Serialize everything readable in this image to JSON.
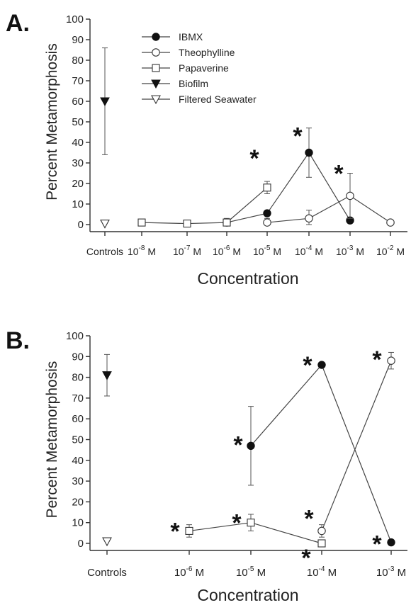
{
  "chart_data": [
    {
      "panel": "A.",
      "type": "line",
      "ylabel": "Percent Metamorphosis",
      "xlabel": "Concentration",
      "ylim": [
        0,
        100
      ],
      "yticks": [
        "0",
        "10",
        "20",
        "30",
        "40",
        "50",
        "60",
        "70",
        "80",
        "90",
        "100"
      ],
      "categories": [
        "Controls",
        "10-8 M",
        "10-7 M",
        "10-6 M",
        "10-5 M",
        "10-4 M",
        "10-3 M",
        "10-2 M"
      ],
      "category_labels": [
        {
          "base": "Controls",
          "exp": ""
        },
        {
          "base": "10",
          "exp": "-8",
          "unit": " M"
        },
        {
          "base": "10",
          "exp": "-7",
          "unit": " M"
        },
        {
          "base": "10",
          "exp": "-6",
          "unit": " M"
        },
        {
          "base": "10",
          "exp": "-5",
          "unit": " M"
        },
        {
          "base": "10",
          "exp": "-4",
          "unit": " M"
        },
        {
          "base": "10",
          "exp": "-3",
          "unit": " M"
        },
        {
          "base": "10",
          "exp": "-2",
          "unit": " M"
        }
      ],
      "legend": [
        "IBMX",
        "Theophylline",
        "Papaverine",
        "Biofilm",
        "Filtered Seawater"
      ],
      "series": [
        {
          "name": "IBMX",
          "marker": "filled-circle",
          "points": [
            {
              "x": "10-6 M",
              "y": 1,
              "err": 2
            },
            {
              "x": "10-5 M",
              "y": 5.5,
              "err": 0
            },
            {
              "x": "10-4 M",
              "y": 35,
              "err": 12,
              "sig": true
            },
            {
              "x": "10-3 M",
              "y": 2,
              "err": 0
            }
          ]
        },
        {
          "name": "Theophylline",
          "marker": "open-circle",
          "points": [
            {
              "x": "10-5 M",
              "y": 1,
              "err": 2
            },
            {
              "x": "10-4 M",
              "y": 3,
              "err": 4
            },
            {
              "x": "10-3 M",
              "y": 14,
              "err": 11,
              "sig": true
            },
            {
              "x": "10-2 M",
              "y": 1,
              "err": 0
            }
          ]
        },
        {
          "name": "Papaverine",
          "marker": "open-square",
          "points": [
            {
              "x": "10-8 M",
              "y": 1,
              "err": 1
            },
            {
              "x": "10-7 M",
              "y": 0.5,
              "err": 0
            },
            {
              "x": "10-6 M",
              "y": 1,
              "err": 1
            },
            {
              "x": "10-5 M",
              "y": 18,
              "err": 3,
              "sig": true
            }
          ]
        },
        {
          "name": "Biofilm",
          "marker": "filled-triangle",
          "points": [
            {
              "x": "Controls",
              "y": 60,
              "err": 26
            }
          ]
        },
        {
          "name": "Filtered Seawater",
          "marker": "open-triangle",
          "points": [
            {
              "x": "Controls",
              "y": 0.5,
              "err": 0
            }
          ]
        }
      ]
    },
    {
      "panel": "B.",
      "type": "line",
      "ylabel": "Percent Metamorphosis",
      "xlabel": "Concentration",
      "ylim": [
        0,
        100
      ],
      "yticks": [
        "0",
        "10",
        "20",
        "30",
        "40",
        "50",
        "60",
        "70",
        "80",
        "90",
        "100"
      ],
      "categories": [
        "Controls",
        "10-6 M",
        "10-5 M",
        "10-4 M",
        "10-3 M"
      ],
      "category_labels": [
        {
          "base": "Controls",
          "exp": ""
        },
        {
          "base": "10",
          "exp": "-6",
          "unit": " M"
        },
        {
          "base": "10",
          "exp": "-5",
          "unit": " M"
        },
        {
          "base": "10",
          "exp": "-4",
          "unit": " M"
        },
        {
          "base": "10",
          "exp": "-3",
          "unit": " M"
        }
      ],
      "series": [
        {
          "name": "IBMX",
          "marker": "filled-circle",
          "points": [
            {
              "x": "10-5 M",
              "y": 47,
              "err": 19,
              "sig": true
            },
            {
              "x": "10-4 M",
              "y": 86,
              "err": 0,
              "sig": true
            },
            {
              "x": "10-3 M",
              "y": 0.5,
              "err": 0,
              "sig": true
            }
          ]
        },
        {
          "name": "Theophylline",
          "marker": "open-circle",
          "points": [
            {
              "x": "10-4 M",
              "y": 6,
              "err": 3,
              "sig": true
            },
            {
              "x": "10-3 M",
              "y": 88,
              "err": 4,
              "sig": true
            }
          ]
        },
        {
          "name": "Papaverine",
          "marker": "open-square",
          "points": [
            {
              "x": "10-6 M",
              "y": 6,
              "err": 3,
              "sig": true
            },
            {
              "x": "10-5 M",
              "y": 10,
              "err": 4,
              "sig": true
            },
            {
              "x": "10-4 M",
              "y": 0,
              "err": 0,
              "sig": true
            }
          ]
        },
        {
          "name": "Biofilm",
          "marker": "filled-triangle",
          "points": [
            {
              "x": "Controls",
              "y": 81,
              "err": 10
            }
          ]
        },
        {
          "name": "Filtered Seawater",
          "marker": "open-triangle",
          "points": [
            {
              "x": "Controls",
              "y": 1,
              "err": 0
            }
          ]
        }
      ]
    }
  ]
}
